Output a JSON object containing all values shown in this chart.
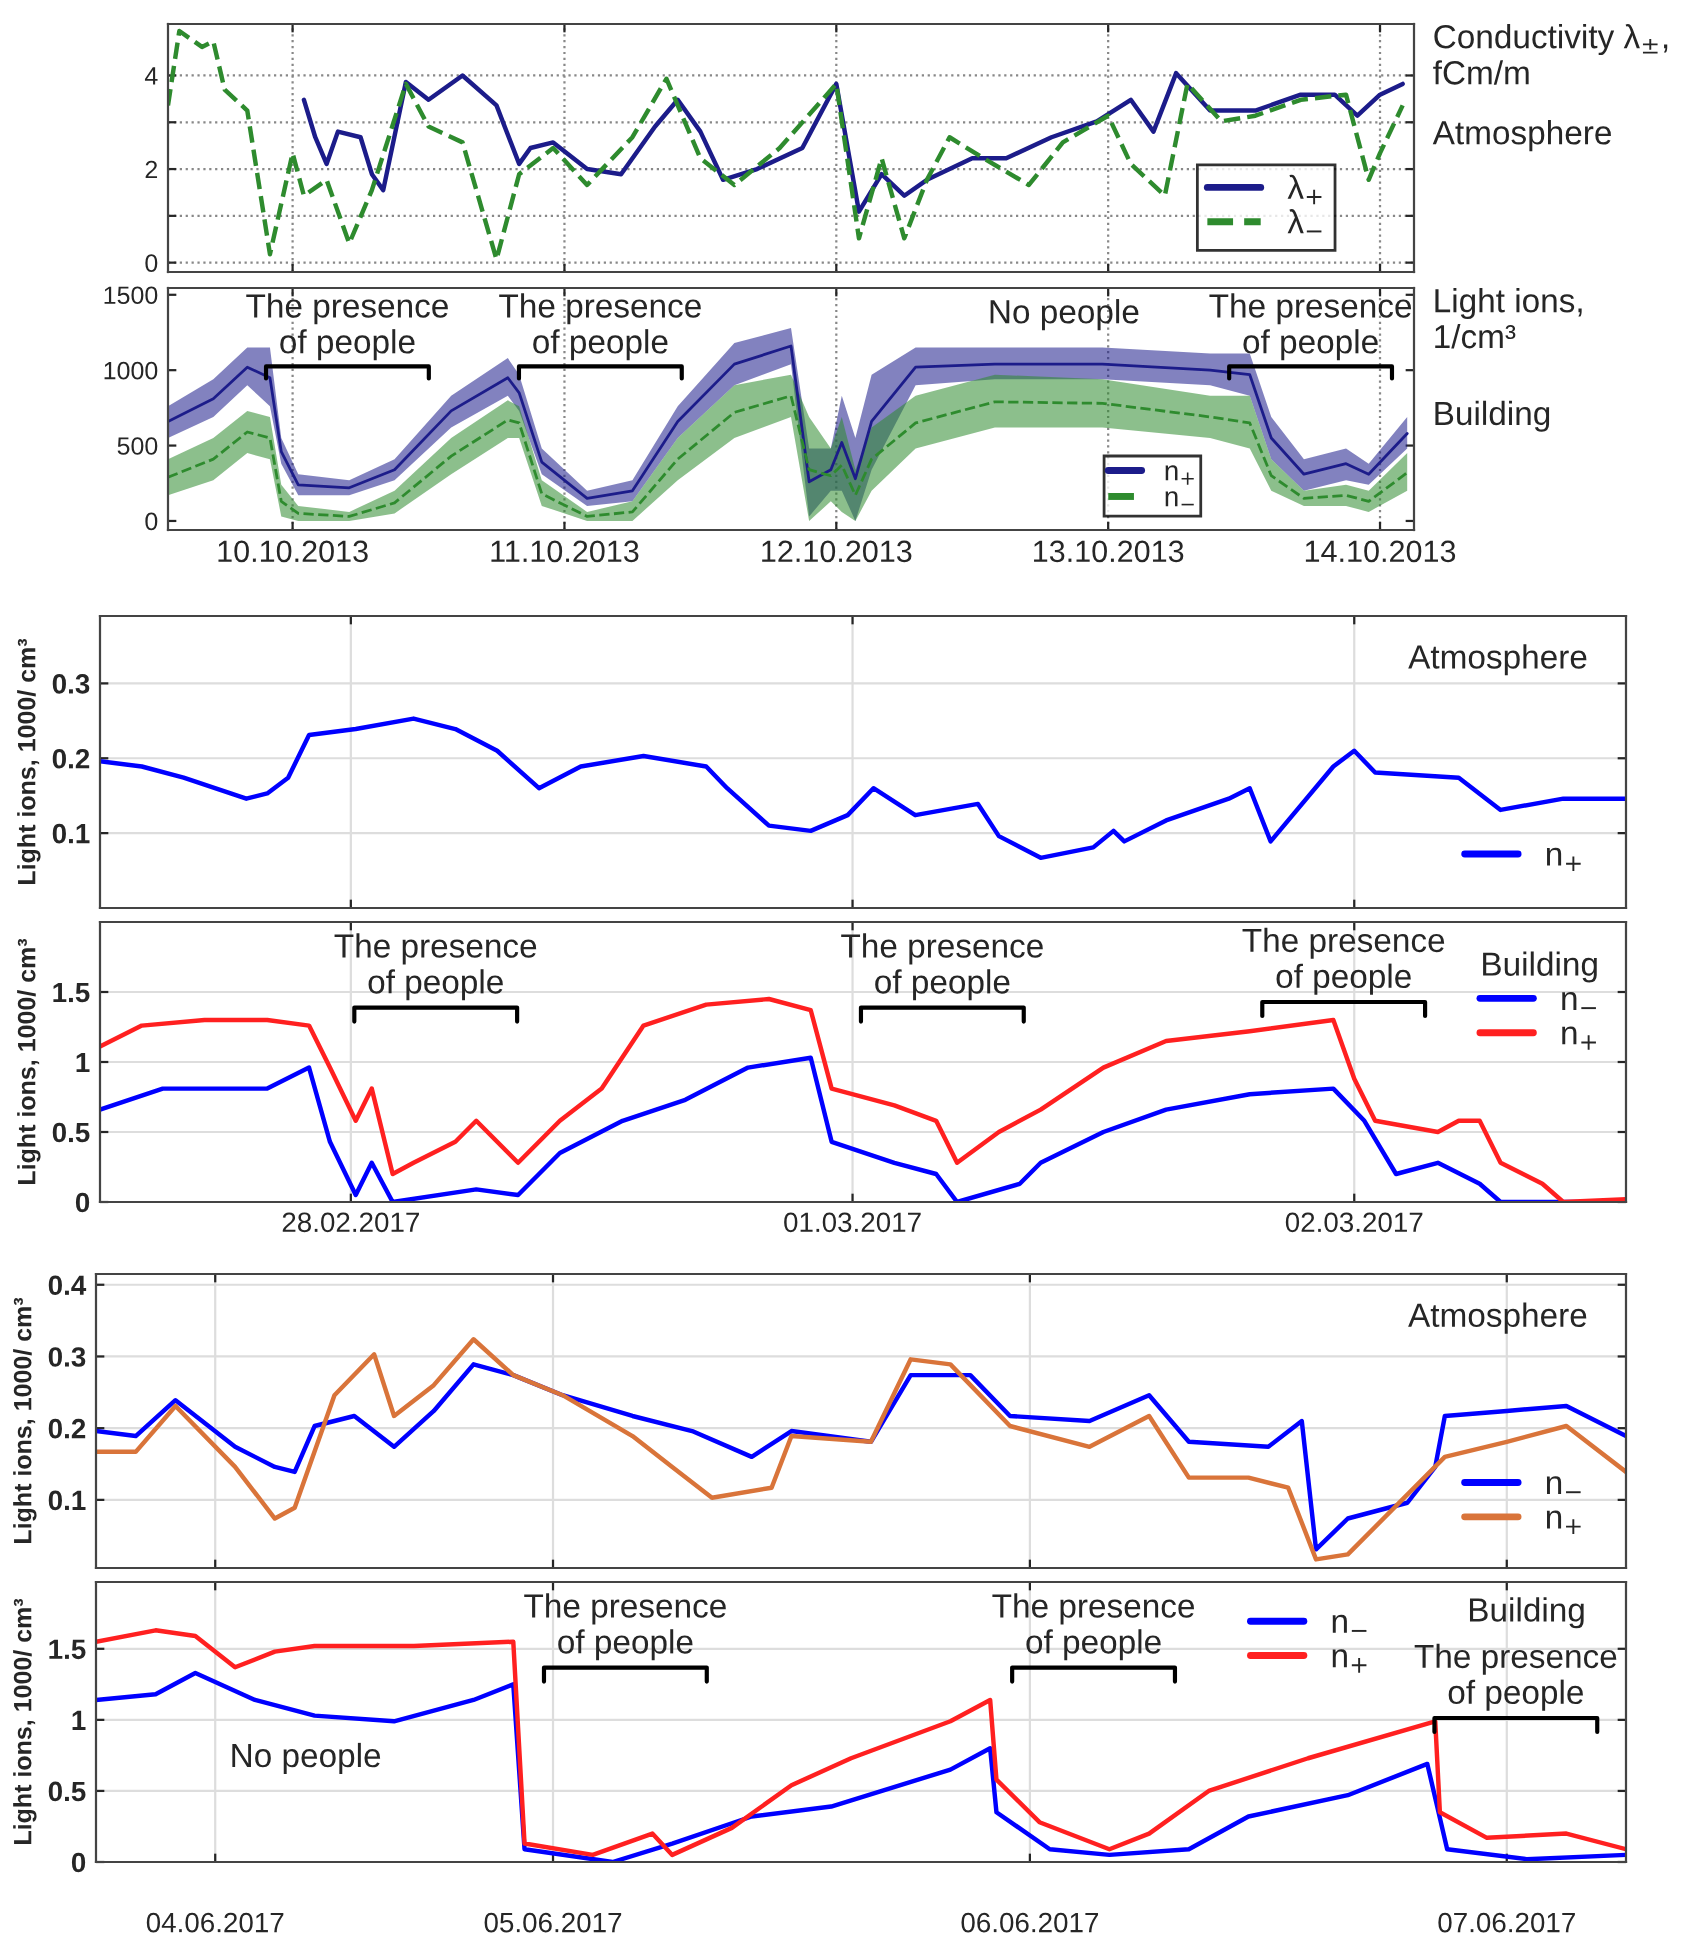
{
  "chart_data": [
    {
      "type": "line",
      "ylabel": "Conductivity λ$_{±}$,\nfCm/m",
      "annotations": [
        "Atmosphere"
      ],
      "xlim": [
        "2013-10-09T13:00",
        "2013-10-14T03:00"
      ],
      "ylim": [
        -0.2,
        5.1
      ],
      "yticks": [
        0,
        {
          "value": 1,
          "label": null
        },
        2,
        {
          "value": 3,
          "label": null
        },
        4
      ],
      "tick_labels": "y",
      "grid": true,
      "legend": "bottom right",
      "series": [
        {
          "name": "λ$_{+}$",
          "color": "#1c1c8a",
          "line_style": "solid",
          "x": [
            "2013-10-10T01:00",
            "2013-10-10T02:00",
            "2013-10-10T03:00",
            "2013-10-10T04:00",
            "2013-10-10T06:00",
            "2013-10-10T07:00",
            "2013-10-10T08:00",
            "2013-10-10T10:00",
            "2013-10-10T12:00",
            "2013-10-10T15:00",
            "2013-10-10T18:00",
            "2013-10-10T20:00",
            "2013-10-10T21:00",
            "2013-10-10T23:00",
            "2013-10-11T02:00",
            "2013-10-11T05:00",
            "2013-10-11T08:00",
            "2013-10-11T10:00",
            "2013-10-11T12:00",
            "2013-10-11T14:00",
            "2013-10-11T17:00",
            "2013-10-11T21:00",
            "2013-10-12T00:00",
            "2013-10-12T02:00",
            "2013-10-12T04:00",
            "2013-10-12T06:00",
            "2013-10-12T08:00",
            "2013-10-12T12:00",
            "2013-10-12T15:00",
            "2013-10-12T19:00",
            "2013-10-12T23:00",
            "2013-10-13T02:00",
            "2013-10-13T04:00",
            "2013-10-13T06:00",
            "2013-10-13T09:00",
            "2013-10-13T13:00",
            "2013-10-13T17:00",
            "2013-10-13T20:00",
            "2013-10-13T22:00",
            "2013-10-14T00:00",
            "2013-10-14T02:00"
          ],
          "values": [
            3.48,
            2.68,
            2.11,
            2.8,
            2.68,
            1.89,
            1.55,
            3.86,
            3.48,
            4.0,
            3.36,
            2.11,
            2.45,
            2.57,
            2.0,
            1.89,
            2.91,
            3.48,
            2.8,
            1.77,
            2.0,
            2.45,
            3.82,
            1.09,
            1.89,
            1.43,
            1.77,
            2.23,
            2.23,
            2.68,
            3.02,
            3.48,
            2.8,
            4.05,
            3.25,
            3.25,
            3.59,
            3.59,
            3.14,
            3.59,
            3.82
          ]
        },
        {
          "name": "λ$_{−}$",
          "color": "#2e8b2e",
          "line_style": "dashed",
          "x": [
            "2013-10-09T13:00",
            "2013-10-09T14:00",
            "2013-10-09T16:00",
            "2013-10-09T17:00",
            "2013-10-09T18:00",
            "2013-10-09T20:00",
            "2013-10-09T22:00",
            "2013-10-10T00:00",
            "2013-10-10T01:00",
            "2013-10-10T03:00",
            "2013-10-10T05:00",
            "2013-10-10T07:00",
            "2013-10-10T10:00",
            "2013-10-10T12:00",
            "2013-10-10T15:00",
            "2013-10-10T18:00",
            "2013-10-10T20:00",
            "2013-10-10T23:00",
            "2013-10-11T02:00",
            "2013-10-11T06:00",
            "2013-10-11T09:00",
            "2013-10-11T12:00",
            "2013-10-11T15:00",
            "2013-10-11T19:00",
            "2013-10-12T00:00",
            "2013-10-12T02:00",
            "2013-10-12T04:00",
            "2013-10-12T06:00",
            "2013-10-12T08:00",
            "2013-10-12T10:00",
            "2013-10-12T13:00",
            "2013-10-12T17:00",
            "2013-10-12T20:00",
            "2013-10-13T00:00",
            "2013-10-13T02:00",
            "2013-10-13T05:00",
            "2013-10-13T07:00",
            "2013-10-13T10:00",
            "2013-10-13T13:00",
            "2013-10-13T17:00",
            "2013-10-13T21:00",
            "2013-10-13T23:00",
            "2013-10-14T00:00",
            "2013-10-14T02:00"
          ],
          "values": [
            3.36,
            4.95,
            4.61,
            4.73,
            3.7,
            3.25,
            0.18,
            2.34,
            1.43,
            1.77,
            0.41,
            1.55,
            3.82,
            2.91,
            2.57,
            0.07,
            1.89,
            2.45,
            1.66,
            2.68,
            3.93,
            2.23,
            1.66,
            2.45,
            3.82,
            0.52,
            2.23,
            0.52,
            1.77,
            2.68,
            2.23,
            1.66,
            2.57,
            3.14,
            2.11,
            1.43,
            3.82,
            3.02,
            3.14,
            3.48,
            3.59,
            1.77,
            2.34,
            3.36
          ]
        }
      ]
    },
    {
      "type": "line",
      "ylabel": "Light ions,\n1/cm³",
      "annotations": [
        "Building",
        "The presence\nof people",
        "The presence\nof people",
        "No people",
        "The presence\nof people"
      ],
      "xlim": [
        "2013-10-09T13:00",
        "2013-10-14T03:00"
      ],
      "ylim": [
        -60,
        1545
      ],
      "xticks": [
        {
          "value": "2013-10-10",
          "label": "10.10.2013"
        },
        {
          "value": "2013-10-11",
          "label": "11.10.2013"
        },
        {
          "value": "2013-10-12",
          "label": "12.10.2013"
        },
        {
          "value": "2013-10-13",
          "label": "13.10.2013"
        },
        {
          "value": "2013-10-14",
          "label": "14.10.2013"
        }
      ],
      "yticks": [
        0,
        500,
        1000,
        1500
      ],
      "grid": "x",
      "legend": "bottom right",
      "series": [
        {
          "name": "n$_{+}$",
          "color": "#1c1c8a",
          "line_style": "solid",
          "x": [
            "2013-10-09T13:00",
            "2013-10-09T17:00",
            "2013-10-09T20:00",
            "2013-10-09T22:00",
            "2013-10-09T23:00",
            "2013-10-10T00:30",
            "2013-10-10T05:00",
            "2013-10-10T09:00",
            "2013-10-10T14:00",
            "2013-10-10T19:00",
            "2013-10-10T20:00",
            "2013-10-10T22:00",
            "2013-10-11T02:00",
            "2013-10-11T06:00",
            "2013-10-11T10:00",
            "2013-10-11T15:00",
            "2013-10-11T20:00",
            "2013-10-11T21:36",
            "2013-10-11T23:31",
            "2013-10-12T00:29",
            "2013-10-12T01:41",
            "2013-10-12T03:07",
            "2013-10-12T07:00",
            "2013-10-12T14:00",
            "2013-10-12T23:30",
            "2013-10-13T09:00",
            "2013-10-13T12:30",
            "2013-10-13T14:24",
            "2013-10-13T17:17",
            "2013-10-13T21:00",
            "2013-10-13T23:00",
            "2013-10-14T02:24"
          ],
          "values": [
            660,
            810,
            1020,
            950,
            460,
            240,
            220,
            340,
            730,
            950,
            850,
            390,
            150,
            200,
            660,
            1040,
            1160,
            260,
            340,
            520,
            280,
            660,
            1020,
            1040,
            1040,
            1000,
            970,
            550,
            310,
            380,
            310,
            580
          ],
          "lower": [
            550,
            690,
            900,
            760,
            380,
            170,
            170,
            270,
            620,
            830,
            730,
            310,
            100,
            130,
            550,
            900,
            1040,
            30,
            200,
            200,
            0,
            340,
            900,
            940,
            940,
            900,
            830,
            410,
            200,
            270,
            240,
            480
          ],
          "upper": [
            760,
            940,
            1150,
            1150,
            550,
            310,
            270,
            410,
            830,
            1080,
            970,
            480,
            200,
            270,
            760,
            1180,
            1280,
            480,
            480,
            830,
            550,
            970,
            1150,
            1150,
            1150,
            1110,
            1110,
            690,
            410,
            480,
            380,
            690
          ]
        },
        {
          "name": "n$_{−}$",
          "color": "#2e8b2e",
          "line_style": "dashed",
          "x": [
            "2013-10-09T13:00",
            "2013-10-09T17:00",
            "2013-10-09T20:00",
            "2013-10-09T22:00",
            "2013-10-09T23:00",
            "2013-10-10T00:30",
            "2013-10-10T05:00",
            "2013-10-10T09:00",
            "2013-10-10T14:00",
            "2013-10-10T19:00",
            "2013-10-10T20:00",
            "2013-10-10T22:00",
            "2013-10-11T02:00",
            "2013-10-11T06:00",
            "2013-10-11T10:00",
            "2013-10-11T15:00",
            "2013-10-11T20:00",
            "2013-10-11T21:36",
            "2013-10-11T23:31",
            "2013-10-12T00:29",
            "2013-10-12T01:41",
            "2013-10-12T03:07",
            "2013-10-12T07:00",
            "2013-10-12T14:00",
            "2013-10-12T23:30",
            "2013-10-13T09:00",
            "2013-10-13T12:30",
            "2013-10-13T14:24",
            "2013-10-13T17:17",
            "2013-10-13T21:00",
            "2013-10-13T23:00",
            "2013-10-14T02:24"
          ],
          "values": [
            290,
            410,
            590,
            550,
            130,
            50,
            30,
            120,
            430,
            670,
            650,
            180,
            30,
            60,
            410,
            720,
            830,
            340,
            300,
            370,
            170,
            410,
            650,
            790,
            780,
            690,
            650,
            300,
            150,
            170,
            130,
            320
          ],
          "lower": [
            170,
            270,
            450,
            410,
            30,
            0,
            0,
            50,
            310,
            550,
            550,
            100,
            0,
            0,
            270,
            550,
            690,
            0,
            130,
            60,
            0,
            200,
            480,
            620,
            620,
            550,
            480,
            200,
            100,
            100,
            60,
            200
          ],
          "upper": [
            410,
            550,
            730,
            690,
            240,
            100,
            60,
            200,
            550,
            800,
            760,
            270,
            60,
            130,
            550,
            900,
            970,
            690,
            480,
            690,
            340,
            620,
            830,
            970,
            940,
            830,
            830,
            410,
            200,
            240,
            200,
            450
          ]
        }
      ]
    },
    {
      "type": "line",
      "ylabel": "Light ions, 1000/ cm³",
      "annotations": [
        "Atmosphere"
      ],
      "xlim": [
        "2017-02-27T12:00",
        "2017-03-02T13:00"
      ],
      "ylim": [
        0,
        0.39
      ],
      "yticks": [
        0.1,
        0.2,
        0.3
      ],
      "tick_labels": "y",
      "grid": true,
      "legend": "bottom right",
      "series": [
        {
          "name": "n$_{+}$",
          "color": "#0000ff",
          "line_style": "solid",
          "x": [
            "2017-02-27T12:00",
            "2017-02-27T14:00",
            "2017-02-27T16:00",
            "2017-02-27T19:00",
            "2017-02-27T20:00",
            "2017-02-27T21:00",
            "2017-02-27T22:00",
            "2017-02-28T00:14",
            "2017-02-28T03:00",
            "2017-02-28T05:00",
            "2017-02-28T07:00",
            "2017-02-28T09:00",
            "2017-02-28T11:00",
            "2017-02-28T14:00",
            "2017-02-28T17:00",
            "2017-02-28T18:00",
            "2017-02-28T20:00",
            "2017-02-28T22:00",
            "2017-02-28T23:46",
            "2017-03-01T01:00",
            "2017-03-01T03:00",
            "2017-03-01T06:00",
            "2017-03-01T07:00",
            "2017-03-01T09:00",
            "2017-03-01T11:31",
            "2017-03-01T12:29",
            "2017-03-01T13:00",
            "2017-03-01T15:00",
            "2017-03-01T18:00",
            "2017-03-01T19:00",
            "2017-03-01T20:00",
            "2017-03-01T23:00",
            "2017-03-02T00:00",
            "2017-03-02T01:00",
            "2017-03-02T05:00",
            "2017-03-02T07:00",
            "2017-03-02T10:00",
            "2017-03-02T13:00"
          ],
          "values": [
            0.196,
            0.189,
            0.174,
            0.146,
            0.153,
            0.174,
            0.231,
            0.239,
            0.253,
            0.239,
            0.21,
            0.16,
            0.189,
            0.203,
            0.189,
            0.16,
            0.11,
            0.103,
            0.124,
            0.16,
            0.124,
            0.139,
            0.096,
            0.067,
            0.081,
            0.103,
            0.089,
            0.117,
            0.146,
            0.16,
            0.089,
            0.189,
            0.21,
            0.181,
            0.174,
            0.131,
            0.146,
            0.146
          ]
        }
      ]
    },
    {
      "type": "line",
      "ylabel": "Light ions, 1000/ cm³",
      "legend_title": "Building",
      "annotations": [
        "The presence\nof people",
        "The presence\nof people",
        "The presence\nof people"
      ],
      "xlim": [
        "2017-02-27T12:00",
        "2017-03-02T13:00"
      ],
      "ylim": [
        0,
        2
      ],
      "xticks": [
        {
          "value": "2017-02-28",
          "label": "28.02.2017"
        },
        {
          "value": "2017-03-01",
          "label": "01.03.2017"
        },
        {
          "value": "2017-03-02",
          "label": "02.03.2017"
        }
      ],
      "yticks": [
        0,
        0.5,
        1,
        1.5
      ],
      "grid": true,
      "legend": "top right",
      "series": [
        {
          "name": "n$_{−}$",
          "color": "#0000ff",
          "line_style": "solid",
          "x": [
            "2017-02-27T12:00",
            "2017-02-27T15:00",
            "2017-02-27T17:00",
            "2017-02-27T20:00",
            "2017-02-27T22:00",
            "2017-02-27T23:00",
            "2017-02-28T00:14",
            "2017-02-28T01:00",
            "2017-02-28T02:00",
            "2017-02-28T06:00",
            "2017-02-28T08:00",
            "2017-02-28T10:00",
            "2017-02-28T13:00",
            "2017-02-28T16:00",
            "2017-02-28T19:00",
            "2017-02-28T22:00",
            "2017-02-28T23:00",
            "2017-03-01T02:00",
            "2017-03-01T04:00",
            "2017-03-01T05:00",
            "2017-03-01T08:00",
            "2017-03-01T09:00",
            "2017-03-01T12:00",
            "2017-03-01T15:00",
            "2017-03-01T19:00",
            "2017-03-01T23:00",
            "2017-03-02T00:29",
            "2017-03-02T02:00",
            "2017-03-02T04:00",
            "2017-03-02T06:00",
            "2017-03-02T07:00",
            "2017-03-02T13:00"
          ],
          "values": [
            0.66,
            0.81,
            0.81,
            0.81,
            0.96,
            0.43,
            0.05,
            0.28,
            0,
            0.09,
            0.05,
            0.35,
            0.58,
            0.73,
            0.96,
            1.03,
            0.43,
            0.28,
            0.2,
            0,
            0.13,
            0.28,
            0.5,
            0.66,
            0.77,
            0.81,
            0.58,
            0.2,
            0.28,
            0.13,
            0,
            0
          ]
        },
        {
          "name": "n$_{+}$",
          "color": "#ff2020",
          "line_style": "solid",
          "x": [
            "2017-02-27T12:00",
            "2017-02-27T14:00",
            "2017-02-27T17:00",
            "2017-02-27T20:00",
            "2017-02-27T22:00",
            "2017-02-27T23:00",
            "2017-02-28T00:14",
            "2017-02-28T01:00",
            "2017-02-28T02:00",
            "2017-02-28T03:00",
            "2017-02-28T05:00",
            "2017-02-28T06:00",
            "2017-02-28T08:00",
            "2017-02-28T10:00",
            "2017-02-28T12:00",
            "2017-02-28T14:00",
            "2017-02-28T17:00",
            "2017-02-28T20:00",
            "2017-02-28T22:00",
            "2017-02-28T23:00",
            "2017-03-01T02:00",
            "2017-03-01T04:00",
            "2017-03-01T05:00",
            "2017-03-01T07:00",
            "2017-03-01T09:00",
            "2017-03-01T12:00",
            "2017-03-01T15:00",
            "2017-03-01T19:00",
            "2017-03-01T23:00",
            "2017-03-02T00:00",
            "2017-03-02T01:00",
            "2017-03-02T04:00",
            "2017-03-02T05:00",
            "2017-03-02T06:00",
            "2017-03-02T07:00",
            "2017-03-02T09:00",
            "2017-03-02T10:00",
            "2017-03-02T13:00"
          ],
          "values": [
            1.11,
            1.26,
            1.3,
            1.3,
            1.26,
            0.96,
            0.58,
            0.81,
            0.2,
            0.28,
            0.43,
            0.58,
            0.28,
            0.58,
            0.81,
            1.26,
            1.41,
            1.45,
            1.37,
            0.81,
            0.69,
            0.58,
            0.28,
            0.5,
            0.66,
            0.96,
            1.15,
            1.22,
            1.3,
            0.88,
            0.58,
            0.5,
            0.58,
            0.58,
            0.28,
            0.13,
            0,
            0.02
          ]
        }
      ]
    },
    {
      "type": "line",
      "ylabel": "Light ions, 1000/ cm³",
      "annotations": [
        "Atmosphere"
      ],
      "xlim": [
        "2017-06-04T01:00",
        "2017-06-07T06:00"
      ],
      "ylim": [
        0.005,
        0.415
      ],
      "yticks": [
        0.1,
        0.2,
        0.3,
        0.4
      ],
      "tick_labels": "y",
      "grid": true,
      "legend": "bottom right",
      "series": [
        {
          "name": "n$_{−}$",
          "color": "#0000ff",
          "line_style": "solid",
          "x": [
            "2017-06-04T01:00",
            "2017-06-04T03:00",
            "2017-06-04T05:00",
            "2017-06-04T08:00",
            "2017-06-04T10:00",
            "2017-06-04T11:00",
            "2017-06-04T12:00",
            "2017-06-04T14:00",
            "2017-06-04T16:00",
            "2017-06-04T18:00",
            "2017-06-04T20:00",
            "2017-06-04T22:00",
            "2017-06-05T00:29",
            "2017-06-05T04:00",
            "2017-06-05T07:00",
            "2017-06-05T10:00",
            "2017-06-05T12:00",
            "2017-06-05T16:00",
            "2017-06-05T18:00",
            "2017-06-05T21:00",
            "2017-06-05T23:00",
            "2017-06-06T03:00",
            "2017-06-06T06:00",
            "2017-06-06T08:00",
            "2017-06-06T12:00",
            "2017-06-06T13:41",
            "2017-06-06T14:24",
            "2017-06-06T16:00",
            "2017-06-06T19:00",
            "2017-06-06T20:24",
            "2017-06-06T20:53",
            "2017-06-07T00:00",
            "2017-06-07T03:00",
            "2017-06-07T06:00"
          ],
          "values": [
            0.196,
            0.189,
            0.239,
            0.174,
            0.146,
            0.139,
            0.203,
            0.217,
            0.174,
            0.224,
            0.289,
            0.274,
            0.246,
            0.217,
            0.196,
            0.16,
            0.196,
            0.181,
            0.274,
            0.274,
            0.217,
            0.21,
            0.246,
            0.181,
            0.174,
            0.21,
            0.031,
            0.074,
            0.096,
            0.146,
            0.217,
            0.224,
            0.231,
            0.189
          ]
        },
        {
          "name": "n$_{+}$",
          "color": "#d9743a",
          "line_style": "solid",
          "x": [
            "2017-06-04T01:00",
            "2017-06-04T03:00",
            "2017-06-04T05:00",
            "2017-06-04T08:00",
            "2017-06-04T10:00",
            "2017-06-04T11:00",
            "2017-06-04T13:00",
            "2017-06-04T15:00",
            "2017-06-04T16:00",
            "2017-06-04T18:00",
            "2017-06-04T20:00",
            "2017-06-04T22:00",
            "2017-06-05T00:29",
            "2017-06-05T04:00",
            "2017-06-05T06:00",
            "2017-06-05T08:00",
            "2017-06-05T11:00",
            "2017-06-05T12:00",
            "2017-06-05T16:00",
            "2017-06-05T18:00",
            "2017-06-05T20:00",
            "2017-06-05T23:00",
            "2017-06-06T03:00",
            "2017-06-06T06:00",
            "2017-06-06T08:00",
            "2017-06-06T11:00",
            "2017-06-06T13:00",
            "2017-06-06T14:24",
            "2017-06-06T16:00",
            "2017-06-06T20:53",
            "2017-06-07T00:00",
            "2017-06-07T03:00",
            "2017-06-07T06:00"
          ],
          "values": [
            0.167,
            0.167,
            0.231,
            0.146,
            0.074,
            0.089,
            0.246,
            0.303,
            0.217,
            0.26,
            0.324,
            0.274,
            0.246,
            0.189,
            0.146,
            0.103,
            0.117,
            0.189,
            0.181,
            0.296,
            0.289,
            0.203,
            0.174,
            0.217,
            0.131,
            0.131,
            0.117,
            0.017,
            0.024,
            0.16,
            0.181,
            0.203,
            0.139
          ]
        }
      ]
    },
    {
      "type": "line",
      "ylabel": "Light ions, 1000/ cm³",
      "annotations": [
        "Building",
        "The presence\nof people",
        "The presence\nof people",
        "The presence\nof people",
        "No people"
      ],
      "xlim": [
        "2017-06-04T01:00",
        "2017-06-07T06:00"
      ],
      "ylim": [
        0,
        1.97
      ],
      "xticks": [
        {
          "value": "2017-06-04T07:00",
          "label": "04.06.2017"
        },
        {
          "value": "2017-06-05",
          "label": "05.06.2017"
        },
        {
          "value": "2017-06-06",
          "label": "06.06.2017"
        },
        {
          "value": "2017-06-07",
          "label": "07.06.2017"
        }
      ],
      "yticks": [
        0,
        0.5,
        1,
        1.5
      ],
      "grid": true,
      "legend": "top right",
      "series": [
        {
          "name": "n$_{−}$",
          "color": "#0000ff",
          "line_style": "solid",
          "x": [
            "2017-06-04T01:00",
            "2017-06-04T04:00",
            "2017-06-04T06:00",
            "2017-06-04T09:00",
            "2017-06-04T12:00",
            "2017-06-04T16:00",
            "2017-06-04T20:00",
            "2017-06-04T22:00",
            "2017-06-04T22:34",
            "2017-06-05T03:00",
            "2017-06-05T06:00",
            "2017-06-05T10:00",
            "2017-06-05T14:00",
            "2017-06-05T20:00",
            "2017-06-05T22:00",
            "2017-06-05T22:19",
            "2017-06-06T01:00",
            "2017-06-06T04:00",
            "2017-06-06T08:00",
            "2017-06-06T11:00",
            "2017-06-06T16:00",
            "2017-06-06T20:00",
            "2017-06-06T21:00",
            "2017-06-07T01:00",
            "2017-06-07T06:00"
          ],
          "values": [
            1.14,
            1.18,
            1.33,
            1.14,
            1.03,
            0.99,
            1.14,
            1.25,
            0.09,
            0,
            0.13,
            0.32,
            0.39,
            0.65,
            0.8,
            0.35,
            0.09,
            0.05,
            0.09,
            0.32,
            0.47,
            0.69,
            0.09,
            0.02,
            0.05
          ]
        },
        {
          "name": "n$_{+}$",
          "color": "#ff2020",
          "line_style": "solid",
          "x": [
            "2017-06-04T01:00",
            "2017-06-04T04:00",
            "2017-06-04T06:00",
            "2017-06-04T08:00",
            "2017-06-04T10:00",
            "2017-06-04T12:00",
            "2017-06-04T17:00",
            "2017-06-04T22:00",
            "2017-06-04T22:34",
            "2017-06-05T02:00",
            "2017-06-05T05:00",
            "2017-06-05T06:00",
            "2017-06-05T09:00",
            "2017-06-05T12:00",
            "2017-06-05T15:00",
            "2017-06-05T20:00",
            "2017-06-05T22:00",
            "2017-06-05T22:19",
            "2017-06-06T00:29",
            "2017-06-06T04:00",
            "2017-06-06T06:00",
            "2017-06-06T09:00",
            "2017-06-06T14:00",
            "2017-06-06T20:24",
            "2017-06-06T20:38",
            "2017-06-06T23:00",
            "2017-06-07T03:00",
            "2017-06-07T06:00"
          ],
          "values": [
            1.55,
            1.63,
            1.59,
            1.37,
            1.48,
            1.52,
            1.52,
            1.55,
            0.13,
            0.05,
            0.2,
            0.05,
            0.24,
            0.54,
            0.73,
            0.99,
            1.14,
            0.58,
            0.28,
            0.09,
            0.2,
            0.5,
            0.73,
            0.99,
            0.35,
            0.17,
            0.2,
            0.09
          ]
        }
      ]
    }
  ]
}
